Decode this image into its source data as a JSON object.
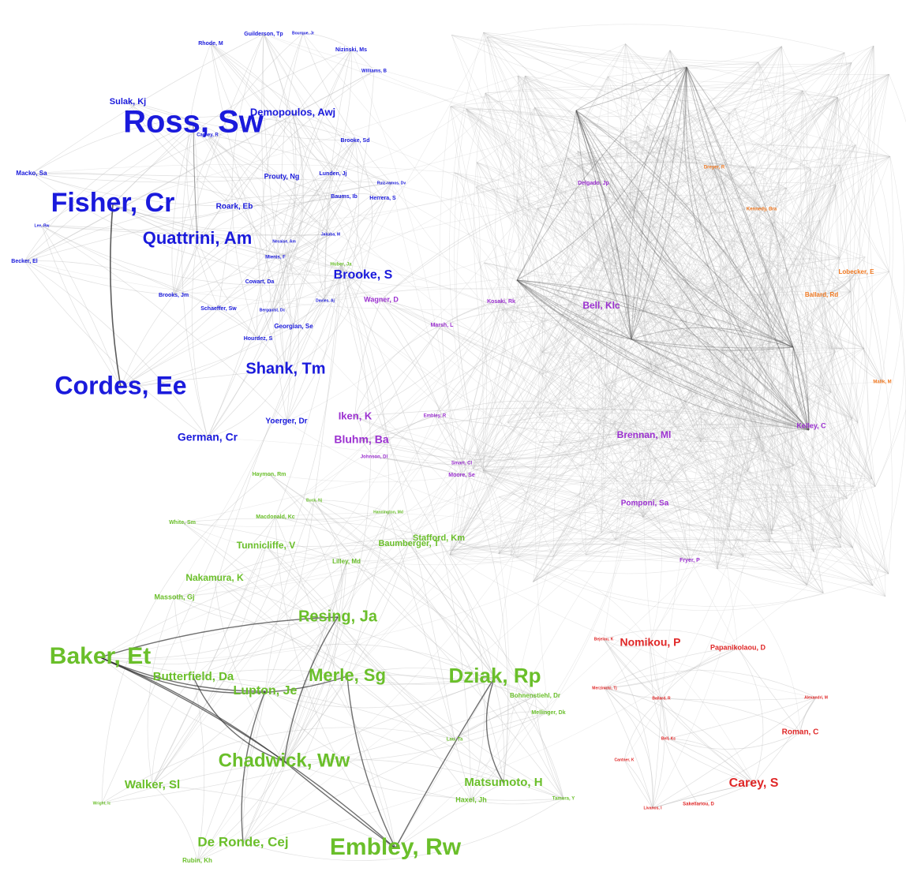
{
  "groups": [
    {
      "color": "#1a1adc",
      "nodes": [
        {
          "label": "Rhode, M"
        },
        {
          "label": "Guilderson, Tp"
        },
        {
          "label": "Bourque, Jr"
        },
        {
          "label": "Nizinski, Ms"
        },
        {
          "label": "Williams, B"
        },
        {
          "label": "Sulak, Kj"
        },
        {
          "label": "Ross, Sw"
        },
        {
          "label": "Demopoulos, Awj"
        },
        {
          "label": "Carney, R"
        },
        {
          "label": "Brooke, Sd"
        },
        {
          "label": "Macko, Sa"
        },
        {
          "label": "Prouty, Ng"
        },
        {
          "label": "Lunden, Jj"
        },
        {
          "label": "Ruiz-ramos, Dv"
        },
        {
          "label": "Fisher, Cr"
        },
        {
          "label": "Roark, Eb"
        },
        {
          "label": "Baums, Ib"
        },
        {
          "label": "Herrera, S"
        },
        {
          "label": "Lee, Rw"
        },
        {
          "label": "Quattrini, Am"
        },
        {
          "label": "Jakuba, M"
        },
        {
          "label": "Becker, El"
        },
        {
          "label": "Necaise, Am"
        },
        {
          "label": "Mienis, F"
        },
        {
          "label": "Brooke, S"
        },
        {
          "label": "Cowart, Da"
        },
        {
          "label": "Brooks, Jm"
        },
        {
          "label": "Davies, Aj"
        },
        {
          "label": "Schaeffer, Sw"
        },
        {
          "label": "Bergquist, Dc"
        },
        {
          "label": "Georgian, Se"
        },
        {
          "label": "Hourdez, S"
        },
        {
          "label": "Shank, Tm"
        },
        {
          "label": "Cordes, Ee"
        },
        {
          "label": "Yoerger, Dr"
        },
        {
          "label": "German, Cr"
        }
      ]
    },
    {
      "color": "#9b30d0",
      "nodes": [
        {
          "label": "Wagner, D"
        },
        {
          "label": "Bell, Klc"
        },
        {
          "label": "Kosaki, Rk"
        },
        {
          "label": "Marsh, L"
        },
        {
          "label": "Iken, K"
        },
        {
          "label": "Embley, R"
        },
        {
          "label": "Bluhm, Ba"
        },
        {
          "label": "Johnson, Dl"
        },
        {
          "label": "Brennan, Ml"
        },
        {
          "label": "Kelley, C"
        },
        {
          "label": "Moore, Se"
        },
        {
          "label": "Smart, Cl"
        },
        {
          "label": "Pomponi, Sa"
        },
        {
          "label": "Fryer, P"
        },
        {
          "label": "Delgado, Jp"
        }
      ]
    },
    {
      "color": "#f07820",
      "nodes": [
        {
          "label": "Dreyer, R"
        },
        {
          "label": "Kennedy, Bra"
        },
        {
          "label": "Lobecker, E"
        },
        {
          "label": "Ballard, Rd"
        },
        {
          "label": "Malik, M"
        }
      ]
    },
    {
      "color": "#e02828",
      "nodes": [
        {
          "label": "Bejelou, K"
        },
        {
          "label": "Nomikou, P"
        },
        {
          "label": "Papanikolaou, D"
        },
        {
          "label": "Merzinicki, Tj"
        },
        {
          "label": "Ballard, R"
        },
        {
          "label": "Alexandri, M"
        },
        {
          "label": "Bell, Kc"
        },
        {
          "label": "Roman, C"
        },
        {
          "label": "Carey, S"
        },
        {
          "label": "Cantner, K"
        },
        {
          "label": "Sakellariou, D"
        },
        {
          "label": "Livanos, I"
        }
      ]
    },
    {
      "color": "#6abf2a",
      "nodes": [
        {
          "label": "Haymon, Rm"
        },
        {
          "label": "Huber, Ja"
        },
        {
          "label": "Buck, Nj"
        },
        {
          "label": "Hannington, Md"
        },
        {
          "label": "White, Sm"
        },
        {
          "label": "Macdonald, Kc"
        },
        {
          "label": "Stafford, Km"
        },
        {
          "label": "Baumberger, T"
        },
        {
          "label": "Tunnicliffe, V"
        },
        {
          "label": "Lilley, Md"
        },
        {
          "label": "Nakamura, K"
        },
        {
          "label": "Massoth, Gj"
        },
        {
          "label": "Resing, Ja"
        },
        {
          "label": "Baker, Et"
        },
        {
          "label": "Butterfield, Da"
        },
        {
          "label": "Merle, Sg"
        },
        {
          "label": "Dziak, Rp"
        },
        {
          "label": "Lupton, Je"
        },
        {
          "label": "Bohnenstiehl, Dr"
        },
        {
          "label": "Mellinger, Dk"
        },
        {
          "label": "Chadwick, Ww"
        },
        {
          "label": "Walker, Sl"
        },
        {
          "label": "Matsumoto, H"
        },
        {
          "label": "Haxel, Jh"
        },
        {
          "label": "Tamura, Y"
        },
        {
          "label": "Lau, Ta"
        },
        {
          "label": "De Ronde, Cej"
        },
        {
          "label": "Embley, Rw"
        },
        {
          "label": "Rubin, Kh"
        },
        {
          "label": "Wright, Ic"
        }
      ]
    }
  ]
}
